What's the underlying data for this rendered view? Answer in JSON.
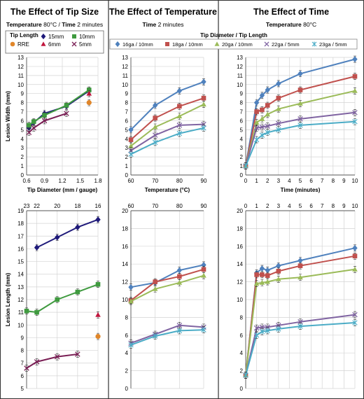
{
  "panel_titles": [
    "The Effect of Tip Size",
    "The Effect of Temperature",
    "The Effect of Time"
  ],
  "conditions": {
    "size": [
      {
        "label": "Temperature",
        "value": " 80°C / "
      },
      {
        "label": "Time",
        "value": " 2 minutes"
      }
    ],
    "temp": [
      {
        "label": "Time",
        "value": " 2 minutes"
      }
    ],
    "time": [
      {
        "label": "Temperature",
        "value": " 80°C"
      }
    ]
  },
  "legends": {
    "size_title": "Tip Length",
    "size_items": [
      "15mm",
      "10mm",
      "RRE",
      "6mm",
      "5mm"
    ],
    "main_title": "Tip Diameter / Tip Length",
    "main_items": [
      "16ga / 10mm",
      "18ga / 10mm",
      "20ga / 10mm",
      "22ga / 5mm",
      "23ga / 5mm"
    ]
  },
  "colors": {
    "blue": "#4f81bd",
    "red": "#c0504d",
    "green": "#9bbb59",
    "purple": "#8064a2",
    "lightblue": "#4bacc6",
    "navy": "#1f1a7a",
    "darkgreen": "#3f9a3f",
    "crimson": "#c0143c",
    "magenta": "#7a1f55",
    "orange": "#e0862a"
  },
  "chart_data": [
    {
      "id": "size_width",
      "type": "line",
      "title": "The Effect of Tip Size",
      "xlabel": "Tip Diameter (mm / gauge)",
      "ylabel": "Lesion Width (mm)",
      "xlim": [
        0.6,
        1.8
      ],
      "ylim": [
        0,
        13
      ],
      "xticks": [
        "0.6",
        "0.9",
        "1.2",
        "1.5",
        "1.8"
      ],
      "yticks": [
        "0",
        "1",
        "2",
        "3",
        "4",
        "5",
        "6",
        "7",
        "8",
        "9",
        "10",
        "11",
        "12",
        "13"
      ],
      "grid": true,
      "series": [
        {
          "name": "15mm",
          "color": "navy",
          "marker": "diamond",
          "x": [
            0.64,
            0.72,
            0.9,
            1.27,
            1.65
          ],
          "y": [
            5.2,
            5.8,
            6.8,
            7.6,
            9.3
          ]
        },
        {
          "name": "10mm",
          "color": "darkgreen",
          "marker": "square",
          "x": [
            0.64,
            0.72,
            0.9,
            1.27,
            1.65
          ],
          "y": [
            5.5,
            5.9,
            6.6,
            7.7,
            9.4
          ]
        },
        {
          "name": "RRE",
          "color": "orange",
          "marker": "circle",
          "x": [
            1.65
          ],
          "y": [
            8.0
          ]
        },
        {
          "name": "6mm",
          "color": "crimson",
          "marker": "triangle",
          "x": [
            1.65
          ],
          "y": [
            9.0
          ]
        },
        {
          "name": "5mm",
          "color": "magenta",
          "marker": "x",
          "x": [
            0.64,
            0.72,
            0.9,
            1.27
          ],
          "y": [
            4.7,
            5.2,
            6.0,
            6.8
          ]
        }
      ]
    },
    {
      "id": "temp_width",
      "type": "line",
      "title": "The Effect of Temperature",
      "xlabel": "Temperature (°C)",
      "ylabel": "",
      "xlim": [
        60,
        90
      ],
      "ylim": [
        0,
        13
      ],
      "xticks": [
        "60",
        "70",
        "80",
        "90"
      ],
      "yticks": [
        "0",
        "1",
        "2",
        "3",
        "4",
        "5",
        "6",
        "7",
        "8",
        "9",
        "10",
        "11",
        "12",
        "13"
      ],
      "grid": true,
      "series": [
        {
          "name": "16ga / 10mm",
          "color": "blue",
          "marker": "diamond",
          "x": [
            60,
            70,
            80,
            90
          ],
          "y": [
            5.0,
            7.7,
            9.3,
            10.3
          ]
        },
        {
          "name": "18ga / 10mm",
          "color": "red",
          "marker": "square",
          "x": [
            60,
            70,
            80,
            90
          ],
          "y": [
            3.9,
            6.3,
            7.6,
            8.5
          ]
        },
        {
          "name": "20ga / 10mm",
          "color": "green",
          "marker": "triangle",
          "x": [
            60,
            70,
            80,
            90
          ],
          "y": [
            3.2,
            5.3,
            6.5,
            7.8
          ]
        },
        {
          "name": "22ga / 5mm",
          "color": "purple",
          "marker": "x",
          "x": [
            60,
            70,
            80,
            90
          ],
          "y": [
            2.7,
            4.4,
            5.5,
            5.6
          ]
        },
        {
          "name": "23ga / 5mm",
          "color": "lightblue",
          "marker": "star",
          "x": [
            60,
            70,
            80,
            90
          ],
          "y": [
            2.3,
            3.6,
            4.6,
            5.2
          ]
        }
      ]
    },
    {
      "id": "time_width",
      "type": "line",
      "title": "The Effect of Time",
      "xlabel": "Time (minutes)",
      "ylabel": "",
      "xlim": [
        0,
        10
      ],
      "ylim": [
        0,
        13
      ],
      "xticks": [
        "0",
        "1",
        "2",
        "3",
        "4",
        "5",
        "6",
        "7",
        "8",
        "9",
        "10"
      ],
      "yticks": [
        "0",
        "1",
        "2",
        "3",
        "4",
        "5",
        "6",
        "7",
        "8",
        "9",
        "10",
        "11",
        "12",
        "13"
      ],
      "grid": true,
      "series": [
        {
          "name": "16ga / 10mm",
          "color": "blue",
          "marker": "diamond",
          "x": [
            0,
            1,
            1.5,
            2,
            3,
            5,
            10
          ],
          "y": [
            1.0,
            8.0,
            8.8,
            9.4,
            10.1,
            11.2,
            12.8
          ]
        },
        {
          "name": "18ga / 10mm",
          "color": "red",
          "marker": "square",
          "x": [
            0,
            1,
            1.5,
            2,
            3,
            5,
            10
          ],
          "y": [
            1.0,
            7.0,
            7.2,
            7.7,
            8.5,
            9.4,
            10.9
          ]
        },
        {
          "name": "20ga / 10mm",
          "color": "green",
          "marker": "triangle",
          "x": [
            0,
            1,
            1.5,
            2,
            3,
            5,
            10
          ],
          "y": [
            1.0,
            5.8,
            6.2,
            6.7,
            7.3,
            7.9,
            9.3
          ]
        },
        {
          "name": "22ga / 5mm",
          "color": "purple",
          "marker": "x",
          "x": [
            0,
            1,
            1.5,
            2,
            3,
            5,
            10
          ],
          "y": [
            1.0,
            5.2,
            5.3,
            5.4,
            5.7,
            6.2,
            6.9
          ]
        },
        {
          "name": "23ga / 5mm",
          "color": "lightblue",
          "marker": "star",
          "x": [
            0,
            1,
            1.5,
            2,
            3,
            5,
            10
          ],
          "y": [
            1.0,
            3.9,
            4.4,
            4.7,
            5.0,
            5.5,
            5.9
          ]
        }
      ]
    },
    {
      "id": "size_length",
      "type": "line",
      "title": "",
      "xlabel": "",
      "ylabel": "Lesion Length (mm)",
      "xlim": [
        23,
        16
      ],
      "ylim": [
        5,
        19
      ],
      "xticks": [
        "23",
        "22",
        "20",
        "18",
        "16"
      ],
      "yticks": [
        "5",
        "6",
        "7",
        "8",
        "9",
        "10",
        "11",
        "12",
        "13",
        "14",
        "15",
        "16",
        "17",
        "18",
        "19"
      ],
      "grid": true,
      "series": [
        {
          "name": "15mm",
          "color": "navy",
          "marker": "diamond",
          "x": [
            22,
            20,
            18,
            16
          ],
          "y": [
            16.1,
            16.9,
            17.7,
            18.3
          ]
        },
        {
          "name": "10mm",
          "color": "darkgreen",
          "marker": "square",
          "x": [
            23,
            22,
            20,
            18,
            16
          ],
          "y": [
            11.1,
            11.0,
            12.0,
            12.6,
            13.2
          ]
        },
        {
          "name": "RRE",
          "color": "orange",
          "marker": "circle",
          "x": [
            16
          ],
          "y": [
            9.1
          ]
        },
        {
          "name": "6mm",
          "color": "crimson",
          "marker": "triangle",
          "x": [
            16
          ],
          "y": [
            10.8
          ]
        },
        {
          "name": "5mm",
          "color": "magenta",
          "marker": "x",
          "x": [
            23,
            22,
            20,
            18
          ],
          "y": [
            6.6,
            7.1,
            7.5,
            7.7
          ]
        }
      ]
    },
    {
      "id": "temp_length",
      "type": "line",
      "title": "",
      "xlabel": "",
      "ylabel": "",
      "xlim": [
        60,
        90
      ],
      "ylim": [
        0,
        20
      ],
      "xticks": [
        "60",
        "70",
        "80",
        "90"
      ],
      "yticks": [
        "0",
        "2",
        "4",
        "6",
        "8",
        "10",
        "12",
        "14",
        "16",
        "18",
        "20"
      ],
      "grid": true,
      "series": [
        {
          "name": "16ga / 10mm",
          "color": "blue",
          "marker": "diamond",
          "x": [
            60,
            70,
            80,
            90
          ],
          "y": [
            11.4,
            11.9,
            13.3,
            13.9
          ]
        },
        {
          "name": "18ga / 10mm",
          "color": "red",
          "marker": "square",
          "x": [
            60,
            70,
            80,
            90
          ],
          "y": [
            9.9,
            12.0,
            12.6,
            13.4
          ]
        },
        {
          "name": "20ga / 10mm",
          "color": "green",
          "marker": "triangle",
          "x": [
            60,
            70,
            80,
            90
          ],
          "y": [
            9.8,
            11.2,
            11.9,
            12.7
          ]
        },
        {
          "name": "22ga / 5mm",
          "color": "purple",
          "marker": "x",
          "x": [
            60,
            70,
            80,
            90
          ],
          "y": [
            5.1,
            6.1,
            7.1,
            6.9
          ]
        },
        {
          "name": "23ga / 5mm",
          "color": "lightblue",
          "marker": "star",
          "x": [
            60,
            70,
            80,
            90
          ],
          "y": [
            4.9,
            5.9,
            6.5,
            6.6
          ]
        }
      ]
    },
    {
      "id": "time_length",
      "type": "line",
      "title": "",
      "xlabel": "",
      "ylabel": "",
      "xlim": [
        0,
        10
      ],
      "ylim": [
        0,
        20
      ],
      "xticks": [
        "0",
        "1",
        "2",
        "3",
        "4",
        "5",
        "6",
        "7",
        "8",
        "9",
        "10"
      ],
      "yticks": [
        "0",
        "2",
        "4",
        "6",
        "8",
        "10",
        "12",
        "14",
        "16",
        "18",
        "20"
      ],
      "grid": true,
      "series": [
        {
          "name": "16ga / 10mm",
          "color": "blue",
          "marker": "diamond",
          "x": [
            0,
            1,
            1.5,
            2,
            3,
            5,
            10
          ],
          "y": [
            1.5,
            13.0,
            13.5,
            13.3,
            13.8,
            14.4,
            15.8
          ]
        },
        {
          "name": "18ga / 10mm",
          "color": "red",
          "marker": "square",
          "x": [
            0,
            1,
            1.5,
            2,
            3,
            5,
            10
          ],
          "y": [
            1.5,
            12.8,
            12.8,
            12.7,
            13.2,
            13.8,
            14.9
          ]
        },
        {
          "name": "20ga / 10mm",
          "color": "green",
          "marker": "triangle",
          "x": [
            0,
            1,
            1.5,
            2,
            3,
            5,
            10
          ],
          "y": [
            1.5,
            11.8,
            11.9,
            12.0,
            12.3,
            12.5,
            13.4
          ]
        },
        {
          "name": "22ga / 5mm",
          "color": "purple",
          "marker": "x",
          "x": [
            0,
            1,
            1.5,
            2,
            3,
            5,
            10
          ],
          "y": [
            1.5,
            6.8,
            6.9,
            6.9,
            7.1,
            7.5,
            8.3
          ]
        },
        {
          "name": "23ga / 5mm",
          "color": "lightblue",
          "marker": "star",
          "x": [
            0,
            1,
            1.5,
            2,
            3,
            5,
            10
          ],
          "y": [
            1.5,
            6.0,
            6.4,
            6.5,
            6.7,
            7.0,
            7.4
          ]
        }
      ]
    }
  ]
}
